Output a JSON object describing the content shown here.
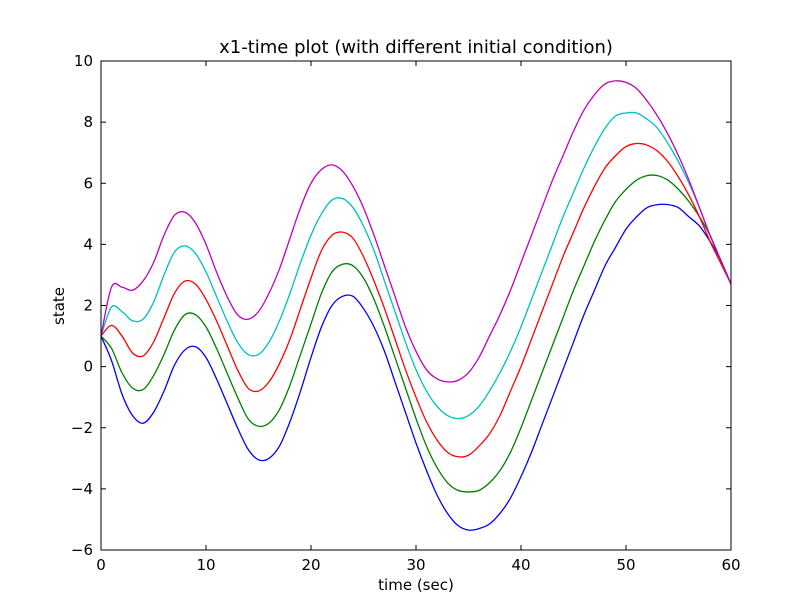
{
  "chart_data": {
    "type": "line",
    "title": "x1-time plot (with different initial condition)",
    "xlabel": "time (sec)",
    "ylabel": "state",
    "xlim": [
      0,
      60
    ],
    "ylim": [
      -6,
      10
    ],
    "xticks": [
      0,
      10,
      20,
      30,
      40,
      50,
      60
    ],
    "yticks": [
      -6,
      -4,
      -2,
      0,
      2,
      4,
      6,
      8,
      10
    ],
    "xtick_labels": [
      "0",
      "10",
      "20",
      "30",
      "40",
      "50",
      "60"
    ],
    "ytick_labels": [
      "−6",
      "−4",
      "−2",
      "0",
      "2",
      "4",
      "6",
      "8",
      "10"
    ],
    "grid": false,
    "series": [
      {
        "color": "#0000ff",
        "x": [
          0,
          1,
          2,
          3,
          4,
          5,
          6,
          7,
          8,
          9,
          10,
          11,
          12,
          13,
          14,
          15,
          16,
          17,
          18,
          19,
          20,
          21,
          22,
          23,
          24,
          25,
          26,
          27,
          28,
          29,
          30,
          31,
          32,
          33,
          34,
          35,
          36,
          37,
          38,
          39,
          40,
          41,
          42,
          43,
          44,
          45,
          46,
          47,
          48,
          49,
          50,
          51,
          52,
          53,
          54,
          55,
          56,
          57,
          58,
          59,
          60
        ],
        "y": [
          1.0,
          0.2,
          -0.9,
          -1.6,
          -1.85,
          -1.5,
          -0.8,
          0.05,
          0.55,
          0.65,
          0.3,
          -0.4,
          -1.2,
          -2.0,
          -2.7,
          -3.05,
          -3.0,
          -2.6,
          -1.8,
          -0.8,
          0.3,
          1.3,
          2.0,
          2.3,
          2.3,
          1.9,
          1.3,
          0.5,
          -0.5,
          -1.5,
          -2.5,
          -3.4,
          -4.2,
          -4.8,
          -5.2,
          -5.35,
          -5.3,
          -5.15,
          -4.8,
          -4.3,
          -3.6,
          -2.8,
          -1.9,
          -1.0,
          -0.1,
          0.8,
          1.7,
          2.5,
          3.3,
          3.9,
          4.5,
          4.9,
          5.2,
          5.3,
          5.3,
          5.2,
          4.9,
          4.6,
          4.1,
          3.5,
          2.7
        ]
      },
      {
        "color": "#007f00",
        "x": [
          0,
          1,
          2,
          3,
          4,
          5,
          6,
          7,
          8,
          9,
          10,
          11,
          12,
          13,
          14,
          15,
          16,
          17,
          18,
          19,
          20,
          21,
          22,
          23,
          24,
          25,
          26,
          27,
          28,
          29,
          30,
          31,
          32,
          33,
          34,
          35,
          36,
          37,
          38,
          39,
          40,
          41,
          42,
          43,
          44,
          45,
          46,
          47,
          48,
          49,
          50,
          51,
          52,
          53,
          54,
          55,
          56,
          57,
          58,
          59,
          60
        ],
        "y": [
          1.0,
          0.6,
          -0.2,
          -0.7,
          -0.75,
          -0.3,
          0.4,
          1.2,
          1.7,
          1.7,
          1.3,
          0.6,
          -0.2,
          -1.0,
          -1.7,
          -1.95,
          -1.85,
          -1.4,
          -0.6,
          0.4,
          1.4,
          2.4,
          3.1,
          3.35,
          3.3,
          2.9,
          2.2,
          1.3,
          0.3,
          -0.7,
          -1.7,
          -2.6,
          -3.3,
          -3.8,
          -4.05,
          -4.1,
          -4.05,
          -3.8,
          -3.4,
          -2.8,
          -2.0,
          -1.1,
          -0.2,
          0.7,
          1.6,
          2.5,
          3.3,
          4.1,
          4.8,
          5.4,
          5.8,
          6.1,
          6.25,
          6.25,
          6.1,
          5.8,
          5.4,
          4.9,
          4.3,
          3.5,
          2.7
        ]
      },
      {
        "color": "#ff0000",
        "x": [
          0,
          1,
          2,
          3,
          4,
          5,
          6,
          7,
          8,
          9,
          10,
          11,
          12,
          13,
          14,
          15,
          16,
          17,
          18,
          19,
          20,
          21,
          22,
          23,
          24,
          25,
          26,
          27,
          28,
          29,
          30,
          31,
          32,
          33,
          34,
          35,
          36,
          37,
          38,
          39,
          40,
          41,
          42,
          43,
          44,
          45,
          46,
          47,
          48,
          49,
          50,
          51,
          52,
          53,
          54,
          55,
          56,
          57,
          58,
          59,
          60
        ],
        "y": [
          1.0,
          1.35,
          1.0,
          0.45,
          0.35,
          0.8,
          1.6,
          2.4,
          2.8,
          2.7,
          2.2,
          1.5,
          0.7,
          -0.1,
          -0.7,
          -0.8,
          -0.5,
          0.1,
          0.9,
          1.9,
          2.9,
          3.8,
          4.3,
          4.4,
          4.2,
          3.6,
          2.8,
          1.9,
          0.9,
          -0.1,
          -1.0,
          -1.8,
          -2.4,
          -2.8,
          -2.95,
          -2.9,
          -2.6,
          -2.2,
          -1.6,
          -0.8,
          0.0,
          0.9,
          1.8,
          2.7,
          3.6,
          4.4,
          5.2,
          5.9,
          6.5,
          6.9,
          7.2,
          7.3,
          7.25,
          7.05,
          6.7,
          6.2,
          5.6,
          4.9,
          4.1,
          3.4,
          2.7
        ]
      },
      {
        "color": "#00bfbf",
        "x": [
          0,
          1,
          2,
          3,
          4,
          5,
          6,
          7,
          8,
          9,
          10,
          11,
          12,
          13,
          14,
          15,
          16,
          17,
          18,
          19,
          20,
          21,
          22,
          23,
          24,
          25,
          26,
          27,
          28,
          29,
          30,
          31,
          32,
          33,
          34,
          35,
          36,
          37,
          38,
          39,
          40,
          41,
          42,
          43,
          44,
          45,
          46,
          47,
          48,
          49,
          50,
          51,
          52,
          53,
          54,
          55,
          56,
          57,
          58,
          59,
          60
        ],
        "y": [
          1.0,
          1.95,
          1.8,
          1.5,
          1.55,
          2.1,
          3.0,
          3.75,
          3.95,
          3.7,
          3.1,
          2.3,
          1.5,
          0.8,
          0.4,
          0.4,
          0.8,
          1.5,
          2.4,
          3.4,
          4.3,
          5.0,
          5.45,
          5.5,
          5.2,
          4.6,
          3.8,
          2.8,
          1.8,
          0.8,
          -0.1,
          -0.8,
          -1.3,
          -1.6,
          -1.7,
          -1.6,
          -1.3,
          -0.8,
          -0.2,
          0.5,
          1.3,
          2.2,
          3.1,
          4.0,
          4.9,
          5.7,
          6.5,
          7.2,
          7.8,
          8.2,
          8.3,
          8.3,
          8.1,
          7.8,
          7.3,
          6.7,
          6.0,
          5.2,
          4.3,
          3.5,
          2.7
        ]
      },
      {
        "color": "#bf00bf",
        "x": [
          0,
          1,
          2,
          3,
          4,
          5,
          6,
          7,
          8,
          9,
          10,
          11,
          12,
          13,
          14,
          15,
          16,
          17,
          18,
          19,
          20,
          21,
          22,
          23,
          24,
          25,
          26,
          27,
          28,
          29,
          30,
          31,
          32,
          33,
          34,
          35,
          36,
          37,
          38,
          39,
          40,
          41,
          42,
          43,
          44,
          45,
          46,
          47,
          48,
          49,
          50,
          51,
          52,
          53,
          54,
          55,
          56,
          57,
          58,
          59,
          60
        ],
        "y": [
          1.0,
          2.6,
          2.6,
          2.5,
          2.8,
          3.4,
          4.3,
          4.95,
          5.05,
          4.7,
          4.0,
          3.1,
          2.3,
          1.7,
          1.55,
          1.8,
          2.4,
          3.2,
          4.2,
          5.2,
          6.0,
          6.45,
          6.6,
          6.4,
          5.9,
          5.2,
          4.3,
          3.3,
          2.3,
          1.3,
          0.5,
          -0.1,
          -0.4,
          -0.5,
          -0.45,
          -0.2,
          0.3,
          1.0,
          1.7,
          2.5,
          3.4,
          4.3,
          5.2,
          6.1,
          6.9,
          7.7,
          8.4,
          8.9,
          9.25,
          9.35,
          9.3,
          9.1,
          8.7,
          8.2,
          7.6,
          6.9,
          6.1,
          5.2,
          4.3,
          3.5,
          2.7
        ]
      }
    ]
  }
}
